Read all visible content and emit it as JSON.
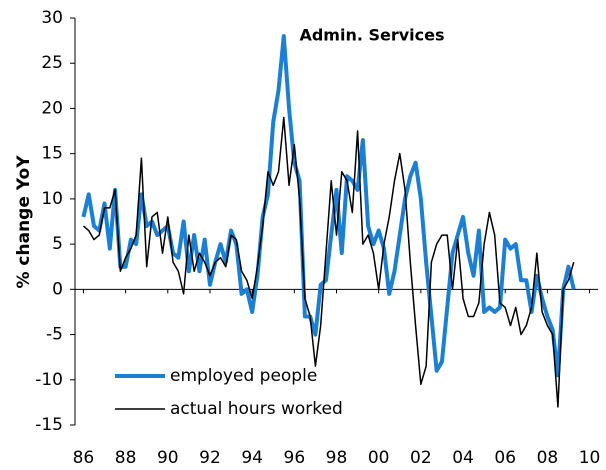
{
  "chart_data": {
    "type": "line",
    "title": "Admin. Services",
    "y_label": "% change YoY",
    "x": [
      1986,
      1986.25,
      1986.5,
      1986.75,
      1987,
      1987.25,
      1987.5,
      1987.75,
      1988,
      1988.25,
      1988.5,
      1988.75,
      1989,
      1989.25,
      1989.5,
      1989.75,
      1990,
      1990.25,
      1990.5,
      1990.75,
      1991,
      1991.25,
      1991.5,
      1991.75,
      1992,
      1992.25,
      1992.5,
      1992.75,
      1993,
      1993.25,
      1993.5,
      1993.75,
      1994,
      1994.25,
      1994.5,
      1994.75,
      1995,
      1995.25,
      1995.5,
      1995.75,
      1996,
      1996.25,
      1996.5,
      1996.75,
      1997,
      1997.25,
      1997.5,
      1997.75,
      1998,
      1998.25,
      1998.5,
      1998.75,
      1999,
      1999.25,
      1999.5,
      1999.75,
      2000,
      2000.25,
      2000.5,
      2000.75,
      2001,
      2001.25,
      2001.5,
      2001.75,
      2002,
      2002.25,
      2002.5,
      2002.75,
      2003,
      2003.25,
      2003.5,
      2003.75,
      2004,
      2004.25,
      2004.5,
      2004.75,
      2005,
      2005.25,
      2005.5,
      2005.75,
      2006,
      2006.25,
      2006.5,
      2006.75,
      2007,
      2007.25,
      2007.5,
      2007.75,
      2008,
      2008.25,
      2008.5,
      2008.75,
      2009,
      2009.25
    ],
    "series": [
      {
        "name": "employed people",
        "color": "#1b7fd4",
        "values": [
          8,
          10.5,
          7,
          6.5,
          9.5,
          4.5,
          11,
          2.5,
          2.5,
          5.5,
          5,
          10.5,
          7,
          7.5,
          6,
          6.5,
          7,
          4,
          3.5,
          7.5,
          2,
          6,
          2,
          5.5,
          0.5,
          3,
          5,
          3,
          6.5,
          5,
          -0.5,
          0,
          -2.5,
          1.5,
          8,
          10.5,
          18.5,
          22,
          28,
          20,
          14,
          12,
          -3,
          -3,
          -5,
          0.5,
          1,
          6,
          11,
          4,
          12.5,
          12,
          11,
          16.5,
          7,
          5,
          6.5,
          4.5,
          -0.5,
          2,
          6,
          10,
          12.5,
          14,
          10,
          3,
          -3,
          -9,
          -8,
          -2,
          4,
          6,
          8,
          4,
          1.5,
          6.5,
          -2.5,
          -2,
          -2.5,
          -2,
          5.5,
          4.5,
          5,
          1,
          1,
          -2.5,
          1.5,
          -1,
          -3,
          -4.5,
          -9.5,
          0,
          2.5,
          0
        ]
      },
      {
        "name": "actual hours worked",
        "color": "#000000",
        "values": [
          7,
          6.5,
          5.5,
          6,
          9,
          9,
          11,
          2,
          3.5,
          4.5,
          6,
          14.5,
          2.5,
          8,
          8.5,
          4,
          8,
          3,
          2,
          -0.5,
          6,
          2,
          4,
          3,
          1.5,
          3,
          3.5,
          2.5,
          6,
          5.5,
          2,
          1,
          -1,
          2.5,
          7,
          13,
          11.5,
          13,
          19,
          11.5,
          16,
          10,
          -1,
          -3,
          -8.5,
          -4,
          4,
          12,
          6,
          13,
          12,
          8.5,
          17.5,
          5,
          6,
          4,
          0,
          5,
          8,
          12,
          15,
          11,
          3,
          -4,
          -10.5,
          -8.5,
          3,
          5,
          6,
          6,
          0,
          5.5,
          -1,
          -3,
          -3,
          -1.5,
          5,
          8.5,
          6,
          -1.5,
          -2,
          -4,
          -2,
          -5,
          -4,
          -2,
          4,
          -2.5,
          -4,
          -5,
          -13,
          0,
          1,
          3
        ]
      }
    ],
    "xlim": [
      1985.6,
      2010.4
    ],
    "xticks": [
      {
        "value": 1986,
        "label": "86"
      },
      {
        "value": 1988,
        "label": "88"
      },
      {
        "value": 1990,
        "label": "90"
      },
      {
        "value": 1992,
        "label": "92"
      },
      {
        "value": 1994,
        "label": "94"
      },
      {
        "value": 1996,
        "label": "96"
      },
      {
        "value": 1998,
        "label": "98"
      },
      {
        "value": 2000,
        "label": "00"
      },
      {
        "value": 2002,
        "label": "02"
      },
      {
        "value": 2004,
        "label": "04"
      },
      {
        "value": 2006,
        "label": "06"
      },
      {
        "value": 2008,
        "label": "08"
      },
      {
        "value": 2010,
        "label": "10"
      }
    ],
    "ylim": [
      -15,
      30
    ],
    "yticks": [
      -15,
      -10,
      -5,
      0,
      5,
      10,
      15,
      20,
      25,
      30
    ],
    "legend": "lower left"
  }
}
